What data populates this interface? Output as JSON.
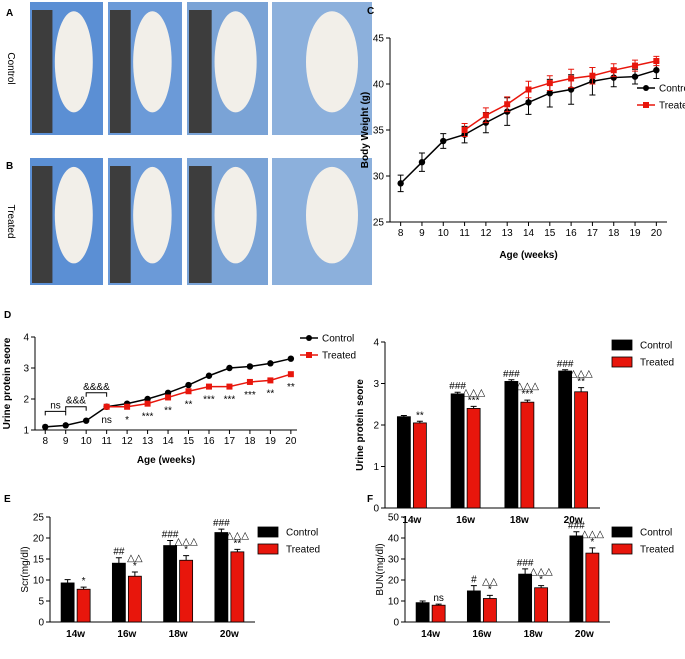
{
  "photo_panels": [
    {
      "panel": "A",
      "label": "Control"
    },
    {
      "panel": "B",
      "label": "Treated"
    }
  ],
  "chart_data": [
    {
      "panel": "C",
      "type": "line",
      "xlabel": "Age (weeks)",
      "ylabel": "Body Weight (g)",
      "x": [
        8,
        9,
        10,
        11,
        12,
        13,
        14,
        15,
        16,
        17,
        18,
        19,
        20
      ],
      "xlim": [
        7.5,
        20.5
      ],
      "xticks": [
        8,
        9,
        10,
        11,
        12,
        13,
        14,
        15,
        16,
        17,
        18,
        19,
        20
      ],
      "ylim": [
        25,
        45
      ],
      "yticks": [
        25,
        30,
        35,
        40,
        45
      ],
      "legend": "right",
      "series": [
        {
          "name": "Control",
          "color": "#000000",
          "marker": "circle",
          "values": [
            29.2,
            31.5,
            33.8,
            34.5,
            35.8,
            37.0,
            38.0,
            39.0,
            39.4,
            40.3,
            40.7,
            40.8,
            41.5
          ],
          "errors": [
            0.9,
            1.0,
            0.8,
            0.9,
            1.1,
            1.5,
            1.3,
            1.5,
            1.6,
            1.5,
            1.0,
            0.8,
            0.9
          ]
        },
        {
          "name": "Treated",
          "color": "#e8160c",
          "marker": "square",
          "values": [
            null,
            null,
            null,
            35.0,
            36.6,
            37.8,
            39.4,
            40.1,
            40.6,
            40.9,
            41.5,
            42.0,
            42.5
          ],
          "errors": [
            null,
            null,
            null,
            0.7,
            0.8,
            0.8,
            0.9,
            0.8,
            1.0,
            0.9,
            0.7,
            0.6,
            0.5
          ]
        }
      ]
    },
    {
      "panel": "D",
      "type": "line",
      "xlabel": "Age (weeks)",
      "ylabel": "Urine protein seore",
      "x": [
        8,
        9,
        10,
        11,
        12,
        13,
        14,
        15,
        16,
        17,
        18,
        19,
        20
      ],
      "xlim": [
        7.5,
        20.3
      ],
      "xticks": [
        8,
        9,
        10,
        11,
        12,
        13,
        14,
        15,
        16,
        17,
        18,
        19,
        20
      ],
      "ylim": [
        1,
        4
      ],
      "yticks": [
        1,
        2,
        3,
        4
      ],
      "legend": "upper right",
      "series": [
        {
          "name": "Control",
          "color": "#000000",
          "marker": "circle",
          "values": [
            1.1,
            1.15,
            1.3,
            1.75,
            1.85,
            2.0,
            2.2,
            2.45,
            2.75,
            3.0,
            3.05,
            3.15,
            3.3
          ]
        },
        {
          "name": "Treated",
          "color": "#e8160c",
          "marker": "square",
          "values": [
            null,
            null,
            null,
            1.75,
            1.75,
            1.85,
            2.05,
            2.25,
            2.4,
            2.4,
            2.55,
            2.6,
            2.8
          ],
          "annotations": [
            null,
            null,
            null,
            "ns",
            "*",
            "***",
            "**",
            "**",
            "***",
            "***",
            "***",
            "**",
            "**"
          ]
        }
      ],
      "brackets": [
        {
          "from": 8,
          "to": 9,
          "label": "ns"
        },
        {
          "from": 9,
          "to": 10,
          "label": "&&&"
        },
        {
          "from": 10,
          "to": 11,
          "label": "&&&&"
        }
      ]
    },
    {
      "type": "bar",
      "ylabel": "Urine protein seore",
      "categories": [
        "14w",
        "16w",
        "18w",
        "20w"
      ],
      "ylim": [
        0,
        4
      ],
      "yticks": [
        0,
        1,
        2,
        3,
        4
      ],
      "legend": "right",
      "series": [
        {
          "name": "Control",
          "color": "#000000",
          "values": [
            2.2,
            2.75,
            3.05,
            3.3
          ],
          "errors": [
            0.03,
            0.04,
            0.04,
            0.03
          ],
          "annotations": [
            [],
            [
              "###"
            ],
            [
              "###"
            ],
            [
              "###"
            ]
          ]
        },
        {
          "name": "Treated",
          "color": "#e8160c",
          "values": [
            2.05,
            2.4,
            2.55,
            2.8
          ],
          "errors": [
            0.04,
            0.05,
            0.05,
            0.1
          ],
          "annotations": [
            [
              "**"
            ],
            [
              "△△△",
              "***"
            ],
            [
              "△△△",
              "***"
            ],
            [
              "△△△",
              "**"
            ]
          ]
        }
      ]
    },
    {
      "panel": "E",
      "type": "bar",
      "ylabel": "Scr(mg/dl)",
      "categories": [
        "14w",
        "16w",
        "18w",
        "20w"
      ],
      "ylim": [
        0,
        25
      ],
      "yticks": [
        0,
        5,
        10,
        15,
        20,
        25
      ],
      "legend": "right",
      "series": [
        {
          "name": "Control",
          "color": "#000000",
          "values": [
            9.3,
            14.0,
            18.2,
            21.3
          ],
          "errors": [
            0.8,
            1.3,
            1.2,
            0.8
          ],
          "annotations": [
            [],
            [
              "##"
            ],
            [
              "###"
            ],
            [
              "###"
            ]
          ]
        },
        {
          "name": "Treated",
          "color": "#e8160c",
          "values": [
            7.8,
            10.9,
            14.7,
            16.7
          ],
          "errors": [
            0.5,
            1.0,
            1.1,
            0.6
          ],
          "annotations": [
            [
              "*"
            ],
            [
              "△△",
              "*"
            ],
            [
              "△△△",
              "*"
            ],
            [
              "△△△",
              "**"
            ]
          ]
        }
      ]
    },
    {
      "panel": "F",
      "type": "bar",
      "ylabel": "BUN(mg/dl)",
      "categories": [
        "14w",
        "16w",
        "18w",
        "20w"
      ],
      "ylim": [
        0,
        50
      ],
      "yticks": [
        0,
        10,
        20,
        30,
        40,
        50
      ],
      "legend": "right",
      "series": [
        {
          "name": "Control",
          "color": "#000000",
          "values": [
            9.2,
            14.8,
            22.8,
            41.0
          ],
          "errors": [
            0.8,
            2.5,
            2.5,
            2.0
          ],
          "annotations": [
            [],
            [
              "#"
            ],
            [
              "###"
            ],
            [
              "###"
            ]
          ]
        },
        {
          "name": "Treated",
          "color": "#e8160c",
          "values": [
            8.0,
            11.2,
            16.3,
            32.8
          ],
          "errors": [
            0.5,
            1.5,
            1.0,
            2.5
          ],
          "annotations": [
            [
              "ns"
            ],
            [
              "△△",
              "*"
            ],
            [
              "△△△",
              "*"
            ],
            [
              "△△△",
              "*"
            ]
          ]
        }
      ]
    }
  ]
}
